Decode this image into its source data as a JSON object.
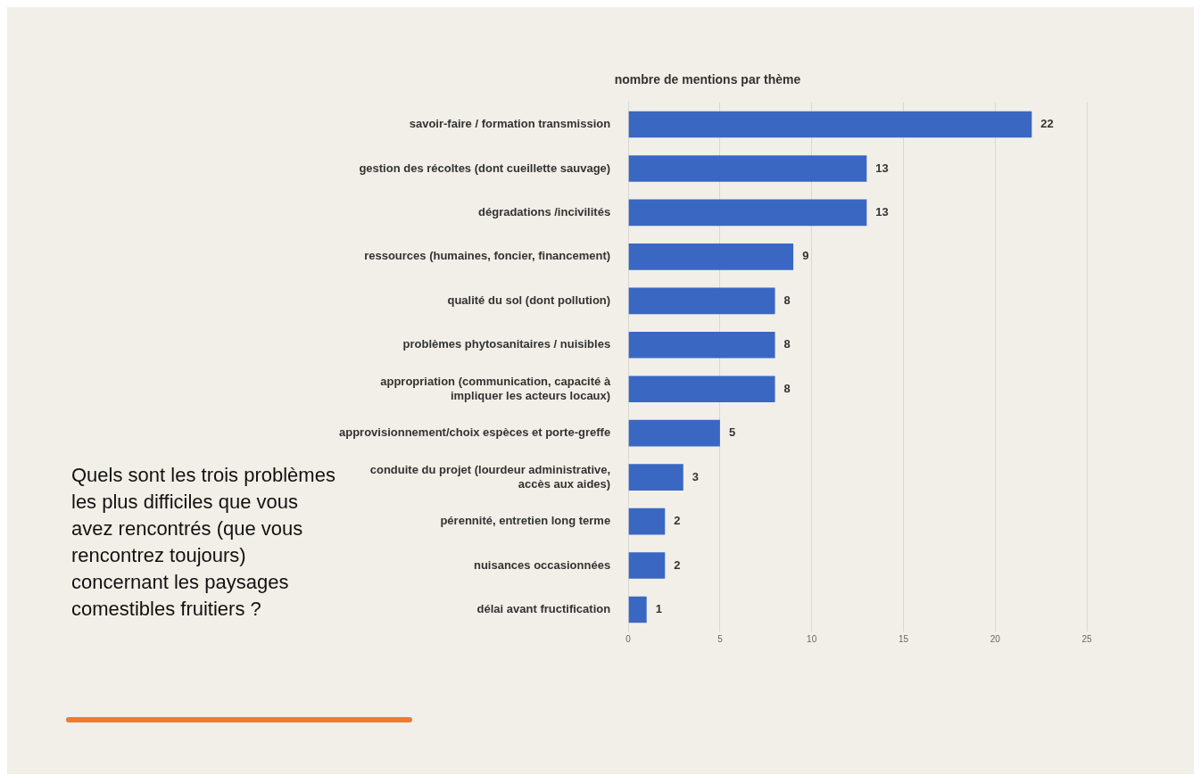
{
  "chart_data": {
    "type": "bar",
    "orientation": "horizontal",
    "title": "nombre de mentions par thème",
    "categories": [
      "savoir-faire / formation transmission",
      "gestion des récoltes (dont cueillette sauvage)",
      "dégradations /incivilités",
      "ressources (humaines, foncier, financement)",
      "qualité du sol (dont pollution)",
      "problèmes phytosanitaires / nuisibles",
      "appropriation (communication, capacité à impliquer les acteurs locaux)",
      "approvisionnement/choix espèces et porte-greffe",
      "conduite du projet (lourdeur administrative, accès aux aides)",
      "pérennité, entretien long terme",
      "nuisances occasionnées",
      "délai avant fructification"
    ],
    "values": [
      22,
      13,
      13,
      9,
      8,
      8,
      8,
      5,
      3,
      2,
      2,
      1
    ],
    "color": "#3a67c2",
    "xlim": [
      0,
      25
    ],
    "xticks": [
      0,
      5,
      10,
      15,
      20,
      25
    ],
    "grid": "x",
    "data_labels": true,
    "legend": false,
    "annotations": [
      "Quels sont les trois problèmes les plus difficiles que vous avez rencontrés (que vous rencontrez toujours) concernant les paysages comestibles fruitiers ?"
    ]
  }
}
